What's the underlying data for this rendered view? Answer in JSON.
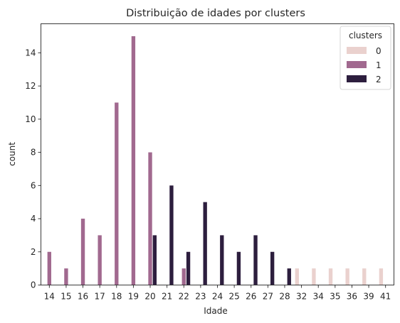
{
  "chart_data": {
    "type": "bar",
    "title": "Distribuição de idades por clusters",
    "xlabel": "Idade",
    "ylabel": "count",
    "categories": [
      "14",
      "15",
      "16",
      "17",
      "18",
      "19",
      "20",
      "21",
      "22",
      "23",
      "24",
      "25",
      "26",
      "27",
      "28",
      "32",
      "34",
      "35",
      "36",
      "39",
      "41"
    ],
    "ylim": [
      0,
      15.75
    ],
    "yticks": [
      0,
      2,
      4,
      6,
      8,
      10,
      12,
      14
    ],
    "grid": false,
    "legend": {
      "title": "clusters",
      "placement": "top-right"
    },
    "series": [
      {
        "name": "0",
        "color": "#ead1ce",
        "values": [
          null,
          null,
          null,
          null,
          null,
          null,
          null,
          null,
          null,
          null,
          null,
          null,
          null,
          null,
          null,
          1,
          1,
          1,
          1,
          1,
          1
        ]
      },
      {
        "name": "1",
        "color": "#a1698f",
        "values": [
          2,
          1,
          4,
          3,
          11,
          15,
          8,
          null,
          1,
          null,
          null,
          null,
          null,
          null,
          null,
          null,
          null,
          null,
          null,
          null,
          null
        ]
      },
      {
        "name": "2",
        "color": "#2d1e3e",
        "values": [
          null,
          null,
          null,
          null,
          null,
          null,
          3,
          6,
          2,
          5,
          3,
          2,
          3,
          2,
          1,
          null,
          null,
          null,
          null,
          null,
          null
        ]
      }
    ]
  }
}
